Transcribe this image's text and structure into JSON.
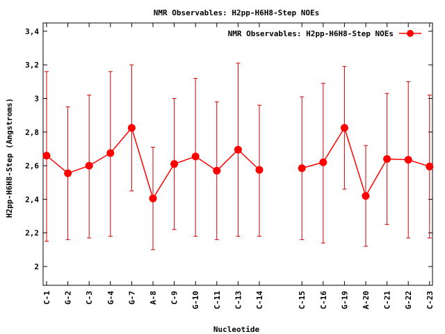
{
  "chart_data": {
    "type": "line",
    "title": "NMR Observables: H2pp-H6H8-Step NOEs",
    "xlabel": "Nucleotide",
    "ylabel": "H2pp-H6H8-Step (Angstroms)",
    "ylim": [
      1.88,
      3.44
    ],
    "yticks": [
      2,
      2.2,
      2.4,
      2.6,
      2.8,
      3,
      3.2,
      3.4
    ],
    "ytick_labels": [
      "2",
      "2,2",
      "2,4",
      "2,6",
      "2,8",
      "3",
      "3,2",
      "3,4"
    ],
    "xlim": [
      0,
      20
    ],
    "grid": false,
    "legend_position": "top-right",
    "series_color": "#ff0000",
    "errorbar_color": "#cc0000",
    "categories": [
      "C-1",
      "G-2",
      "C-3",
      "G-4",
      "G-7",
      "A-8",
      "C-9",
      "G-10",
      "C-11",
      "C-13",
      "C-14",
      "C-15",
      "C-16",
      "G-19",
      "A-20",
      "C-21",
      "G-22",
      "C-23"
    ],
    "x": [
      0,
      1,
      2,
      3,
      4,
      5,
      6,
      7,
      8,
      9,
      10,
      12,
      13,
      14,
      15,
      16,
      17,
      18
    ],
    "series": [
      {
        "name": "NMR Observables: H2pp-H6H8-Step NOEs",
        "values": [
          2.66,
          2.555,
          2.6,
          2.675,
          2.825,
          2.405,
          2.61,
          2.655,
          2.57,
          2.695,
          2.575,
          2.585,
          2.62,
          2.825,
          2.42,
          2.64,
          2.635,
          2.595
        ],
        "err_low": [
          2.15,
          2.16,
          2.17,
          2.18,
          2.45,
          2.1,
          2.22,
          2.18,
          2.16,
          2.18,
          2.18,
          2.16,
          2.14,
          2.46,
          2.12,
          2.25,
          2.17,
          2.17
        ],
        "err_high": [
          3.16,
          2.95,
          3.02,
          3.16,
          3.2,
          2.71,
          3.0,
          3.12,
          2.98,
          3.21,
          2.96,
          3.01,
          3.09,
          3.19,
          2.72,
          3.03,
          3.1,
          3.02
        ],
        "gap_after_index": 10
      }
    ]
  }
}
